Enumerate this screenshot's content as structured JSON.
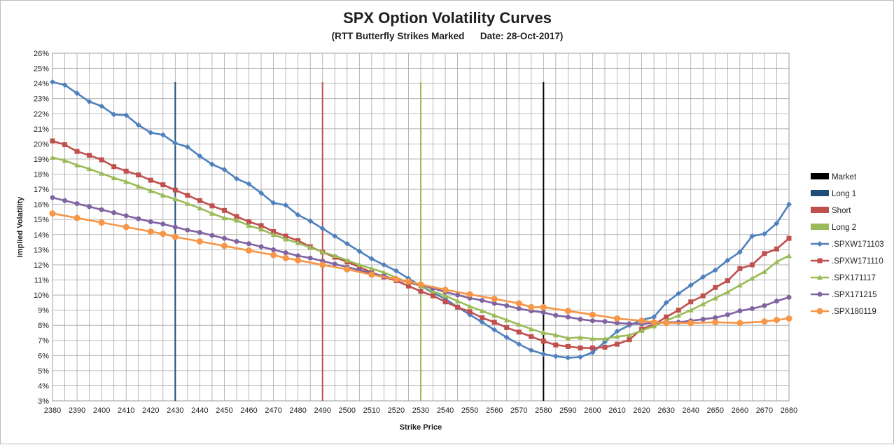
{
  "chart_data": {
    "type": "line",
    "title": "SPX Option Volatility Curves",
    "subtitle": "(RTT Butterfly Strikes Marked      Date: 28-Oct-2017)",
    "xlabel": "Strike Price",
    "ylabel": "Implied Volatility",
    "xlim": [
      2380,
      2680
    ],
    "ylim": [
      3,
      26
    ],
    "x_ticks": [
      "2380",
      "2390",
      "2400",
      "2410",
      "2420",
      "2430",
      "2440",
      "2450",
      "2460",
      "2470",
      "2480",
      "2490",
      "2500",
      "2510",
      "2520",
      "2530",
      "2540",
      "2550",
      "2560",
      "2570",
      "2580",
      "2590",
      "2600",
      "2610",
      "2620",
      "2630",
      "2640",
      "2650",
      "2660",
      "2670",
      "2680"
    ],
    "y_ticks": [
      "3%",
      "4%",
      "5%",
      "6%",
      "7%",
      "8%",
      "9%",
      "10%",
      "11%",
      "12%",
      "13%",
      "14%",
      "15%",
      "16%",
      "17%",
      "18%",
      "19%",
      "20%",
      "21%",
      "22%",
      "23%",
      "24%",
      "25%",
      "26%"
    ],
    "grid": true,
    "legend_position": "right",
    "markers": [
      {
        "name": "Market",
        "x": 2580,
        "color": "#000000"
      },
      {
        "name": "Long 1",
        "x": 2430,
        "color": "#1f4e79"
      },
      {
        "name": "Short",
        "x": 2490,
        "color": "#c0504d"
      },
      {
        "name": "Long 2",
        "x": 2530,
        "color": "#9bbb59"
      }
    ],
    "series": [
      {
        "name": ".SPXW171103",
        "color": "#4f81bd",
        "marker": "diamond",
        "x": [
          2380,
          2385,
          2390,
          2395,
          2400,
          2405,
          2410,
          2415,
          2420,
          2425,
          2430,
          2435,
          2440,
          2445,
          2450,
          2455,
          2460,
          2465,
          2470,
          2475,
          2480,
          2485,
          2490,
          2495,
          2500,
          2505,
          2510,
          2515,
          2520,
          2525,
          2530,
          2535,
          2540,
          2545,
          2550,
          2555,
          2560,
          2565,
          2570,
          2575,
          2580,
          2585,
          2590,
          2595,
          2600,
          2605,
          2610,
          2615,
          2620,
          2625,
          2630,
          2635,
          2640,
          2645,
          2650,
          2655,
          2660,
          2665,
          2670,
          2675,
          2680
        ],
        "values": [
          24.1,
          23.9,
          23.35,
          22.8,
          22.5,
          21.95,
          21.9,
          21.25,
          20.75,
          20.6,
          20.05,
          19.8,
          19.2,
          18.65,
          18.3,
          17.7,
          17.35,
          16.75,
          16.1,
          15.95,
          15.3,
          14.9,
          14.4,
          13.9,
          13.4,
          12.9,
          12.4,
          12.0,
          11.6,
          11.1,
          10.6,
          10.15,
          9.75,
          9.2,
          8.7,
          8.2,
          7.7,
          7.2,
          6.75,
          6.35,
          6.1,
          5.95,
          5.85,
          5.9,
          6.2,
          6.9,
          7.6,
          8.0,
          8.35,
          8.55,
          9.5,
          10.1,
          10.65,
          11.2,
          11.65,
          12.3,
          12.85,
          13.9,
          14.05,
          14.75,
          16.0
        ]
      },
      {
        "name": ".SPXW171110",
        "color": "#c0504d",
        "marker": "square",
        "x": [
          2380,
          2385,
          2390,
          2395,
          2400,
          2405,
          2410,
          2415,
          2420,
          2425,
          2430,
          2435,
          2440,
          2445,
          2450,
          2455,
          2460,
          2465,
          2470,
          2475,
          2480,
          2485,
          2490,
          2495,
          2500,
          2505,
          2510,
          2515,
          2520,
          2525,
          2530,
          2535,
          2540,
          2545,
          2550,
          2555,
          2560,
          2565,
          2570,
          2575,
          2580,
          2585,
          2590,
          2595,
          2600,
          2605,
          2610,
          2615,
          2620,
          2625,
          2630,
          2635,
          2640,
          2645,
          2650,
          2655,
          2660,
          2665,
          2670,
          2675,
          2680
        ],
        "values": [
          20.2,
          19.95,
          19.5,
          19.25,
          18.95,
          18.5,
          18.2,
          17.95,
          17.6,
          17.3,
          16.95,
          16.6,
          16.25,
          15.9,
          15.6,
          15.2,
          14.85,
          14.6,
          14.2,
          13.9,
          13.6,
          13.2,
          12.85,
          12.5,
          12.2,
          11.85,
          11.5,
          11.2,
          10.95,
          10.6,
          10.25,
          9.95,
          9.55,
          9.2,
          8.9,
          8.5,
          8.2,
          7.85,
          7.55,
          7.25,
          6.95,
          6.7,
          6.6,
          6.5,
          6.5,
          6.55,
          6.75,
          7.05,
          7.75,
          8.05,
          8.55,
          9.0,
          9.55,
          9.95,
          10.5,
          10.95,
          11.75,
          12.0,
          12.75,
          13.05,
          13.75
        ]
      },
      {
        "name": ".SPX171117",
        "color": "#9bbb59",
        "marker": "triangle",
        "x": [
          2380,
          2385,
          2390,
          2395,
          2400,
          2405,
          2410,
          2415,
          2420,
          2425,
          2430,
          2435,
          2440,
          2445,
          2450,
          2455,
          2460,
          2465,
          2470,
          2475,
          2480,
          2485,
          2490,
          2495,
          2500,
          2505,
          2510,
          2515,
          2520,
          2525,
          2530,
          2535,
          2540,
          2545,
          2550,
          2555,
          2560,
          2565,
          2570,
          2575,
          2580,
          2585,
          2590,
          2595,
          2600,
          2605,
          2610,
          2615,
          2620,
          2625,
          2630,
          2635,
          2640,
          2645,
          2650,
          2655,
          2660,
          2665,
          2670,
          2675,
          2680
        ],
        "values": [
          19.1,
          18.9,
          18.6,
          18.35,
          18.05,
          17.75,
          17.5,
          17.2,
          16.9,
          16.6,
          16.35,
          16.05,
          15.75,
          15.4,
          15.1,
          14.95,
          14.6,
          14.35,
          14.0,
          13.7,
          13.45,
          13.15,
          12.85,
          12.6,
          12.3,
          12.0,
          11.75,
          11.5,
          11.15,
          10.85,
          10.6,
          10.25,
          9.95,
          9.6,
          9.25,
          8.95,
          8.65,
          8.35,
          8.05,
          7.75,
          7.5,
          7.35,
          7.15,
          7.2,
          7.1,
          7.1,
          7.25,
          7.35,
          7.65,
          7.95,
          8.3,
          8.65,
          9.0,
          9.4,
          9.8,
          10.2,
          10.65,
          11.1,
          11.55,
          12.2,
          12.6
        ]
      },
      {
        "name": ".SPX171215",
        "color": "#8064a2",
        "marker": "circle",
        "x": [
          2380,
          2385,
          2390,
          2395,
          2400,
          2405,
          2410,
          2415,
          2420,
          2425,
          2430,
          2435,
          2440,
          2445,
          2450,
          2455,
          2460,
          2465,
          2470,
          2475,
          2480,
          2485,
          2490,
          2495,
          2500,
          2505,
          2510,
          2515,
          2520,
          2525,
          2530,
          2535,
          2540,
          2545,
          2550,
          2555,
          2560,
          2565,
          2570,
          2575,
          2580,
          2585,
          2590,
          2595,
          2600,
          2605,
          2610,
          2615,
          2620,
          2625,
          2630,
          2635,
          2640,
          2645,
          2650,
          2655,
          2660,
          2665,
          2670,
          2675,
          2680
        ],
        "values": [
          16.45,
          16.25,
          16.05,
          15.85,
          15.65,
          15.45,
          15.25,
          15.05,
          14.85,
          14.7,
          14.5,
          14.3,
          14.15,
          13.95,
          13.75,
          13.55,
          13.4,
          13.2,
          13.0,
          12.8,
          12.6,
          12.45,
          12.25,
          12.05,
          11.85,
          11.65,
          11.45,
          11.25,
          11.05,
          10.85,
          10.65,
          10.45,
          10.2,
          10.0,
          9.8,
          9.65,
          9.45,
          9.3,
          9.1,
          8.95,
          8.85,
          8.65,
          8.55,
          8.4,
          8.3,
          8.25,
          8.15,
          8.1,
          8.1,
          8.15,
          8.2,
          8.2,
          8.3,
          8.4,
          8.5,
          8.7,
          8.95,
          9.1,
          9.3,
          9.6,
          9.85
        ]
      },
      {
        "name": ".SPX180119",
        "color": "#f79646",
        "marker": "circle",
        "x": [
          2380,
          2390,
          2400,
          2410,
          2420,
          2425,
          2430,
          2440,
          2450,
          2460,
          2470,
          2475,
          2480,
          2490,
          2500,
          2510,
          2520,
          2525,
          2530,
          2540,
          2550,
          2560,
          2570,
          2575,
          2580,
          2590,
          2600,
          2610,
          2620,
          2625,
          2630,
          2640,
          2650,
          2660,
          2670,
          2675,
          2680
        ],
        "values": [
          15.4,
          15.1,
          14.8,
          14.5,
          14.2,
          14.05,
          13.85,
          13.55,
          13.25,
          12.95,
          12.65,
          12.45,
          12.3,
          12.0,
          11.7,
          11.35,
          11.05,
          10.9,
          10.7,
          10.35,
          10.05,
          9.75,
          9.45,
          9.2,
          9.2,
          8.95,
          8.7,
          8.45,
          8.3,
          8.2,
          8.15,
          8.15,
          8.2,
          8.15,
          8.25,
          8.35,
          8.45
        ]
      }
    ]
  }
}
